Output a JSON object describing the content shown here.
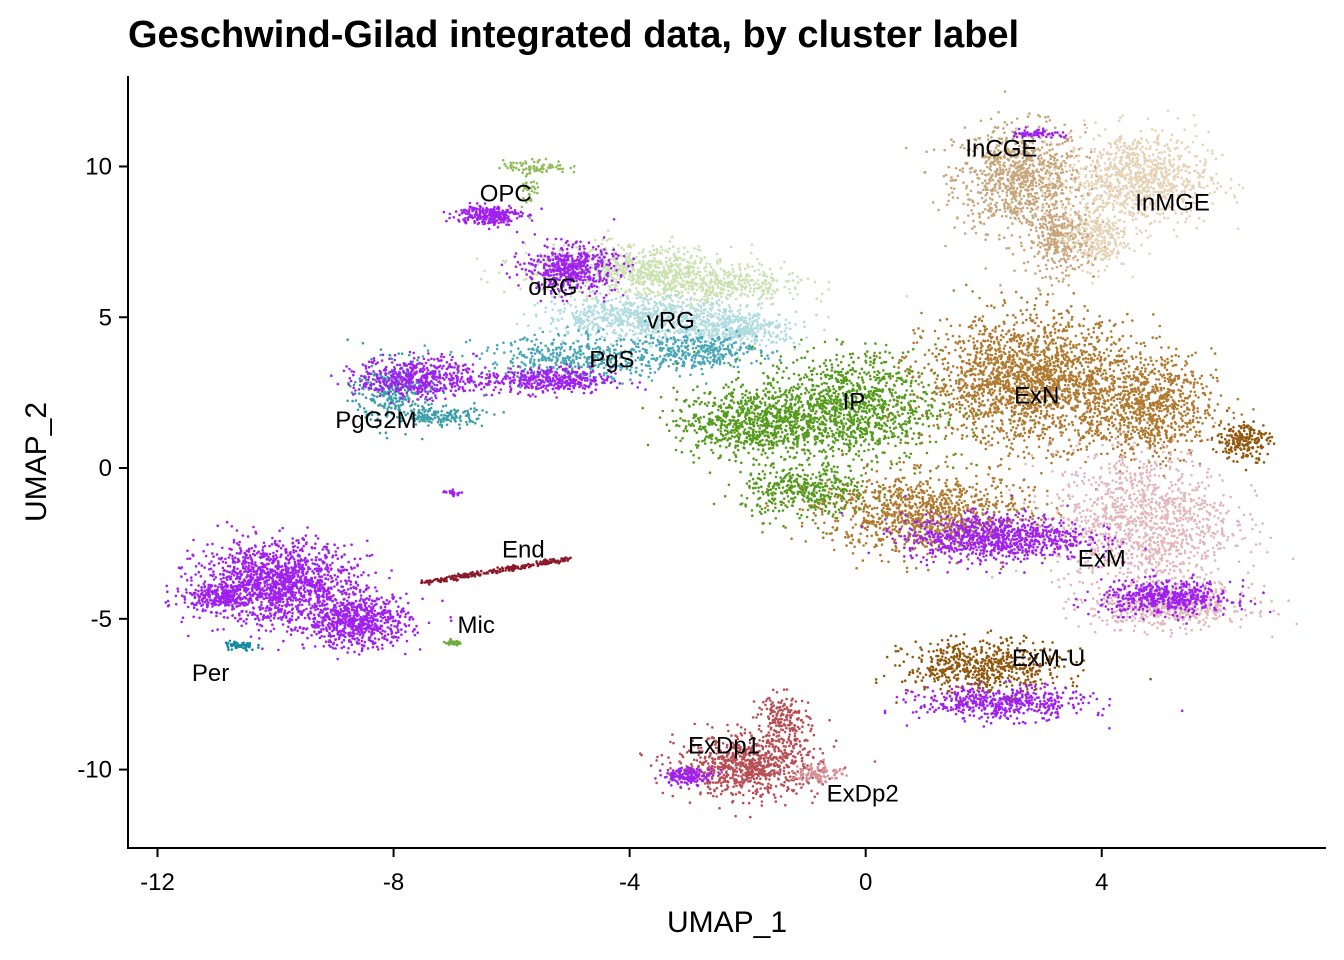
{
  "chart_data": {
    "type": "scatter",
    "title": "Geschwind-Gilad integrated data, by cluster label",
    "xlabel": "UMAP_1",
    "ylabel": "UMAP_2",
    "xlim": [
      -12.5,
      7.8
    ],
    "ylim": [
      -12.6,
      13.0
    ],
    "x_ticks": [
      -12,
      -8,
      -4,
      0,
      4
    ],
    "x_tick_labels": [
      "-12",
      "-8",
      "-4",
      "0",
      "4"
    ],
    "y_ticks": [
      -10,
      -5,
      0,
      5,
      10
    ],
    "y_tick_labels": [
      "-10",
      "-5",
      "0",
      "5",
      "10"
    ],
    "grid": false,
    "legend": "none",
    "clusters": [
      {
        "name": "InCGE",
        "label_x": 2.3,
        "label_y": 10.6,
        "color": "#c8a57a",
        "blobs": [
          [
            2.6,
            9.6,
            1.0,
            1.6,
            900
          ],
          [
            3.3,
            7.5,
            0.5,
            1.0,
            300
          ]
        ]
      },
      {
        "name": "InMGE",
        "label_x": 5.2,
        "label_y": 8.8,
        "color": "#e6d2b5",
        "blobs": [
          [
            4.6,
            9.6,
            1.1,
            1.4,
            900
          ],
          [
            3.9,
            7.6,
            0.5,
            0.9,
            250
          ]
        ]
      },
      {
        "name": "OPC",
        "label_x": -6.1,
        "label_y": 9.1,
        "color": "#8fbc5a",
        "blobs": [
          [
            -5.6,
            10.0,
            0.5,
            0.2,
            80
          ],
          [
            -5.7,
            9.3,
            0.15,
            0.6,
            40
          ]
        ]
      },
      {
        "name": "oRG",
        "label_x": -5.3,
        "label_y": 6.0,
        "color": "#c9e2b0",
        "blobs": [
          [
            -4.0,
            6.6,
            1.6,
            0.7,
            700
          ],
          [
            -2.6,
            6.0,
            1.4,
            0.6,
            400
          ]
        ]
      },
      {
        "name": "vRG",
        "label_x": -3.3,
        "label_y": 4.9,
        "color": "#b0dce0",
        "blobs": [
          [
            -3.8,
            5.0,
            1.5,
            0.6,
            700
          ],
          [
            -2.2,
            4.6,
            1.0,
            0.5,
            400
          ]
        ]
      },
      {
        "name": "PgS",
        "label_x": -4.3,
        "label_y": 3.6,
        "color": "#4aa7b8",
        "blobs": [
          [
            -4.8,
            3.6,
            1.6,
            0.7,
            500
          ],
          [
            -2.8,
            3.9,
            0.9,
            0.5,
            300
          ]
        ]
      },
      {
        "name": "PgG2M",
        "label_x": -8.3,
        "label_y": 1.6,
        "color": "#3b9daa",
        "blobs": [
          [
            -8.0,
            2.5,
            0.6,
            1.0,
            300
          ],
          [
            -7.2,
            1.7,
            0.7,
            0.3,
            150
          ]
        ]
      },
      {
        "name": "IP",
        "label_x": -0.2,
        "label_y": 2.2,
        "color": "#559b1c",
        "blobs": [
          [
            -0.3,
            2.0,
            1.4,
            1.6,
            1200
          ],
          [
            -2.0,
            1.5,
            1.1,
            1.0,
            700
          ],
          [
            -1.0,
            -0.8,
            1.0,
            0.8,
            400
          ]
        ]
      },
      {
        "name": "ExN",
        "label_x": 2.9,
        "label_y": 2.4,
        "color": "#b07a30",
        "blobs": [
          [
            2.8,
            2.9,
            1.6,
            1.9,
            2000
          ],
          [
            1.0,
            -1.5,
            1.6,
            1.2,
            1000
          ],
          [
            4.8,
            2.0,
            1.0,
            1.5,
            800
          ]
        ]
      },
      {
        "name": "ExM",
        "label_x": 4.0,
        "label_y": -3.0,
        "color": "#e3b6bc",
        "blobs": [
          [
            4.7,
            -1.8,
            1.4,
            2.2,
            1200
          ],
          [
            5.2,
            -4.6,
            1.2,
            0.6,
            500
          ]
        ]
      },
      {
        "name": "ExM-U",
        "label_x": 3.1,
        "label_y": -6.3,
        "color": "#91590f",
        "blobs": [
          [
            2.0,
            -6.6,
            1.2,
            0.8,
            600
          ],
          [
            6.4,
            0.9,
            0.4,
            0.6,
            200
          ]
        ]
      },
      {
        "name": "ExDp1",
        "label_x": -2.4,
        "label_y": -9.2,
        "color": "#b94f55",
        "blobs": [
          [
            -2.0,
            -9.9,
            1.1,
            0.9,
            800
          ],
          [
            -1.4,
            -8.4,
            0.4,
            0.8,
            200
          ]
        ]
      },
      {
        "name": "ExDp2",
        "label_x": -0.05,
        "label_y": -10.8,
        "color": "#d69096",
        "blobs": [
          [
            -0.8,
            -10.1,
            0.4,
            0.3,
            100
          ]
        ]
      },
      {
        "name": "End",
        "label_x": -5.8,
        "label_y": -2.7,
        "color": "#8c1a2a",
        "line": [
          [
            -7.5,
            -3.8
          ],
          [
            -5.0,
            -3.0
          ],
          250
        ]
      },
      {
        "name": "Mic",
        "label_x": -6.6,
        "label_y": -5.2,
        "color": "#6fae3a",
        "blobs": [
          [
            -7.0,
            -5.8,
            0.15,
            0.07,
            40
          ]
        ]
      },
      {
        "name": "Per",
        "label_x": -11.1,
        "label_y": -6.8,
        "color": "#158ba0",
        "blobs": [
          [
            -10.6,
            -5.9,
            0.25,
            0.15,
            60
          ]
        ]
      },
      {
        "name": "mixed",
        "label_x": null,
        "label_y": null,
        "color": "#a020f0",
        "blobs": [
          [
            -10.0,
            -3.8,
            1.2,
            1.2,
            1500
          ],
          [
            -8.6,
            -5.1,
            0.8,
            0.8,
            700
          ],
          [
            -11.0,
            -4.3,
            0.5,
            0.3,
            200
          ],
          [
            -6.4,
            8.4,
            0.5,
            0.3,
            250
          ],
          [
            -5.0,
            6.6,
            0.7,
            0.7,
            500
          ],
          [
            -7.6,
            3.0,
            0.9,
            0.6,
            500
          ],
          [
            -5.4,
            2.9,
            1.0,
            0.4,
            400
          ],
          [
            2.2,
            -2.3,
            1.4,
            0.7,
            900
          ],
          [
            5.1,
            -4.3,
            1.0,
            0.5,
            500
          ],
          [
            2.3,
            -7.8,
            1.3,
            0.5,
            500
          ],
          [
            -3.0,
            -10.2,
            0.4,
            0.25,
            150
          ],
          [
            2.9,
            11.1,
            0.4,
            0.15,
            60
          ],
          [
            -7.0,
            -0.8,
            0.15,
            0.08,
            20
          ]
        ]
      }
    ]
  }
}
